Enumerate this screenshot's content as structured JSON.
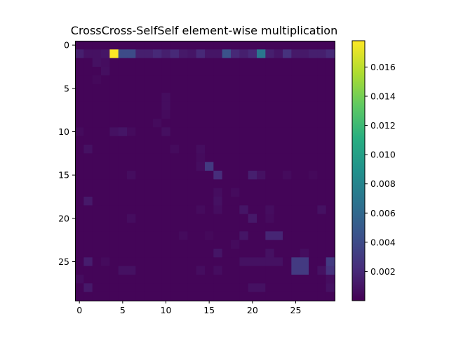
{
  "chart_data": {
    "type": "heatmap",
    "title": "CrossCross-SelfSelf element-wise multiplication",
    "xlabel": "",
    "ylabel": "",
    "rows": 30,
    "cols": 30,
    "x_ticks": [
      0,
      5,
      10,
      15,
      20,
      25
    ],
    "y_ticks": [
      0,
      5,
      10,
      15,
      20,
      25
    ],
    "colormap": "viridis",
    "colorbar": {
      "vmin": 0.0,
      "vmax": 0.0178,
      "ticks": [
        0.002,
        0.004,
        0.006,
        0.008,
        0.01,
        0.012,
        0.014,
        0.016
      ],
      "tick_labels": [
        "0.002",
        "0.004",
        "0.006",
        "0.008",
        "0.010",
        "0.012",
        "0.014",
        "0.016"
      ]
    },
    "background_value": 0.0002,
    "cells": [
      [
        1,
        0,
        0.0015
      ],
      [
        1,
        1,
        0.0008
      ],
      [
        1,
        2,
        0.0008
      ],
      [
        1,
        3,
        0.001
      ],
      [
        1,
        4,
        0.0178
      ],
      [
        1,
        5,
        0.004
      ],
      [
        1,
        6,
        0.004
      ],
      [
        1,
        7,
        0.0015
      ],
      [
        1,
        8,
        0.0015
      ],
      [
        1,
        9,
        0.002
      ],
      [
        1,
        10,
        0.0015
      ],
      [
        1,
        11,
        0.002
      ],
      [
        1,
        12,
        0.0012
      ],
      [
        1,
        13,
        0.001
      ],
      [
        1,
        14,
        0.002
      ],
      [
        1,
        15,
        0.001
      ],
      [
        1,
        16,
        0.001
      ],
      [
        1,
        17,
        0.0045
      ],
      [
        1,
        18,
        0.002
      ],
      [
        1,
        19,
        0.0015
      ],
      [
        1,
        20,
        0.002
      ],
      [
        1,
        21,
        0.007
      ],
      [
        1,
        22,
        0.0015
      ],
      [
        1,
        23,
        0.001
      ],
      [
        1,
        24,
        0.0025
      ],
      [
        1,
        25,
        0.0012
      ],
      [
        1,
        26,
        0.0012
      ],
      [
        1,
        27,
        0.0015
      ],
      [
        1,
        28,
        0.0015
      ],
      [
        1,
        29,
        0.002
      ],
      [
        2,
        2,
        0.0008
      ],
      [
        2,
        3,
        0.0006
      ],
      [
        3,
        3,
        0.0007
      ],
      [
        4,
        2,
        0.0004
      ],
      [
        6,
        10,
        0.0006
      ],
      [
        7,
        10,
        0.0006
      ],
      [
        8,
        10,
        0.0005
      ],
      [
        9,
        9,
        0.0005
      ],
      [
        10,
        10,
        0.0007
      ],
      [
        10,
        0,
        0.0005
      ],
      [
        10,
        4,
        0.0008
      ],
      [
        10,
        5,
        0.001
      ],
      [
        10,
        6,
        0.0005
      ],
      [
        12,
        1,
        0.0008
      ],
      [
        12,
        11,
        0.0005
      ],
      [
        12,
        14,
        0.0006
      ],
      [
        13,
        14,
        0.0005
      ],
      [
        14,
        14,
        0.0006
      ],
      [
        14,
        15,
        0.003
      ],
      [
        15,
        16,
        0.0022
      ],
      [
        15,
        20,
        0.0015
      ],
      [
        15,
        21,
        0.0008
      ],
      [
        15,
        24,
        0.0005
      ],
      [
        15,
        27,
        0.0004
      ],
      [
        15,
        6,
        0.0006
      ],
      [
        17,
        16,
        0.0006
      ],
      [
        17,
        18,
        0.0005
      ],
      [
        18,
        1,
        0.0012
      ],
      [
        18,
        16,
        0.0008
      ],
      [
        19,
        14,
        0.0005
      ],
      [
        19,
        16,
        0.0006
      ],
      [
        19,
        19,
        0.001
      ],
      [
        19,
        22,
        0.0006
      ],
      [
        19,
        28,
        0.0008
      ],
      [
        20,
        6,
        0.0006
      ],
      [
        20,
        20,
        0.0012
      ],
      [
        20,
        22,
        0.0005
      ],
      [
        22,
        12,
        0.0005
      ],
      [
        22,
        15,
        0.0004
      ],
      [
        22,
        19,
        0.001
      ],
      [
        22,
        22,
        0.0018
      ],
      [
        22,
        23,
        0.0018
      ],
      [
        23,
        18,
        0.0005
      ],
      [
        24,
        16,
        0.001
      ],
      [
        24,
        22,
        0.0008
      ],
      [
        24,
        26,
        0.0006
      ],
      [
        25,
        1,
        0.0014
      ],
      [
        25,
        3,
        0.0005
      ],
      [
        25,
        19,
        0.0008
      ],
      [
        25,
        20,
        0.0008
      ],
      [
        25,
        21,
        0.0008
      ],
      [
        25,
        22,
        0.0008
      ],
      [
        25,
        23,
        0.0008
      ],
      [
        25,
        25,
        0.003
      ],
      [
        25,
        26,
        0.003
      ],
      [
        25,
        29,
        0.003
      ],
      [
        26,
        5,
        0.0008
      ],
      [
        26,
        6,
        0.0008
      ],
      [
        26,
        14,
        0.0006
      ],
      [
        26,
        16,
        0.0006
      ],
      [
        26,
        25,
        0.003
      ],
      [
        26,
        26,
        0.003
      ],
      [
        26,
        28,
        0.0008
      ],
      [
        26,
        29,
        0.0025
      ],
      [
        27,
        0,
        0.0006
      ],
      [
        27,
        29,
        0.0006
      ],
      [
        28,
        1,
        0.0012
      ],
      [
        28,
        20,
        0.0008
      ],
      [
        28,
        21,
        0.0008
      ],
      [
        28,
        29,
        0.0008
      ]
    ]
  }
}
